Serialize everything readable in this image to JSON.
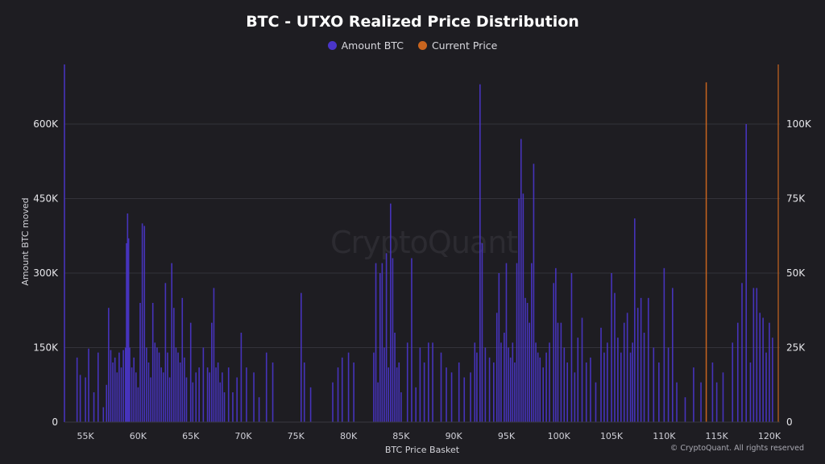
{
  "chart_data": {
    "type": "bar",
    "title": "BTC - UTXO Realized Price Distribution",
    "xlabel": "BTC Price Basket",
    "ylabel": "Amount BTC moved",
    "y2label": "",
    "xlim": [
      53000,
      121000
    ],
    "ylim": [
      0,
      720000
    ],
    "y2lim": [
      0,
      120000
    ],
    "x_ticks": [
      55000,
      60000,
      65000,
      70000,
      75000,
      80000,
      85000,
      90000,
      95000,
      100000,
      105000,
      110000,
      115000,
      120000
    ],
    "x_tick_labels": [
      "55K",
      "60K",
      "65K",
      "70K",
      "75K",
      "80K",
      "85K",
      "90K",
      "95K",
      "100K",
      "105K",
      "110K",
      "115K",
      "120K"
    ],
    "y_ticks": [
      0,
      150000,
      300000,
      450000,
      600000
    ],
    "y_tick_labels": [
      "0",
      "150K",
      "300K",
      "450K",
      "600K"
    ],
    "y2_ticks": [
      0,
      25000,
      50000,
      75000,
      100000
    ],
    "y2_tick_labels": [
      "0",
      "25K",
      "50K",
      "75K",
      "100K"
    ],
    "grid": true,
    "legend_position": "top-center",
    "colors": {
      "amount": "#4a35c9",
      "current_price": "#c8641e",
      "background": "#1e1d22",
      "grid": "#33323a"
    },
    "series": [
      {
        "name": "Amount BTC",
        "axis": "left",
        "points": [
          [
            53000,
            720000
          ],
          [
            54200,
            130000
          ],
          [
            54500,
            95000
          ],
          [
            55000,
            90000
          ],
          [
            55300,
            148000
          ],
          [
            55800,
            60000
          ],
          [
            56200,
            140000
          ],
          [
            56700,
            30000
          ],
          [
            57000,
            75000
          ],
          [
            57200,
            230000
          ],
          [
            57400,
            145000
          ],
          [
            57600,
            120000
          ],
          [
            57800,
            130000
          ],
          [
            58000,
            100000
          ],
          [
            58200,
            140000
          ],
          [
            58400,
            110000
          ],
          [
            58600,
            145000
          ],
          [
            58800,
            150000
          ],
          [
            58900,
            360000
          ],
          [
            59000,
            420000
          ],
          [
            59100,
            370000
          ],
          [
            59200,
            150000
          ],
          [
            59400,
            110000
          ],
          [
            59600,
            130000
          ],
          [
            59800,
            100000
          ],
          [
            60000,
            70000
          ],
          [
            60200,
            240000
          ],
          [
            60400,
            400000
          ],
          [
            60600,
            395000
          ],
          [
            60800,
            150000
          ],
          [
            61000,
            120000
          ],
          [
            61200,
            90000
          ],
          [
            61400,
            240000
          ],
          [
            61600,
            160000
          ],
          [
            61800,
            150000
          ],
          [
            62000,
            140000
          ],
          [
            62200,
            110000
          ],
          [
            62400,
            100000
          ],
          [
            62600,
            280000
          ],
          [
            62800,
            140000
          ],
          [
            63000,
            90000
          ],
          [
            63200,
            320000
          ],
          [
            63400,
            230000
          ],
          [
            63600,
            150000
          ],
          [
            63800,
            140000
          ],
          [
            64000,
            120000
          ],
          [
            64200,
            250000
          ],
          [
            64400,
            130000
          ],
          [
            64600,
            90000
          ],
          [
            65000,
            200000
          ],
          [
            65200,
            80000
          ],
          [
            65500,
            100000
          ],
          [
            65800,
            110000
          ],
          [
            66200,
            150000
          ],
          [
            66600,
            110000
          ],
          [
            66800,
            100000
          ],
          [
            67000,
            200000
          ],
          [
            67200,
            270000
          ],
          [
            67400,
            110000
          ],
          [
            67600,
            120000
          ],
          [
            67800,
            80000
          ],
          [
            68000,
            100000
          ],
          [
            68200,
            60000
          ],
          [
            68600,
            110000
          ],
          [
            69000,
            60000
          ],
          [
            69400,
            90000
          ],
          [
            69800,
            180000
          ],
          [
            70300,
            110000
          ],
          [
            71000,
            100000
          ],
          [
            71500,
            50000
          ],
          [
            72200,
            140000
          ],
          [
            72800,
            120000
          ],
          [
            75500,
            260000
          ],
          [
            75800,
            120000
          ],
          [
            76400,
            70000
          ],
          [
            78500,
            80000
          ],
          [
            79000,
            110000
          ],
          [
            79400,
            130000
          ],
          [
            80000,
            140000
          ],
          [
            80500,
            120000
          ],
          [
            82400,
            140000
          ],
          [
            82600,
            320000
          ],
          [
            82800,
            80000
          ],
          [
            83000,
            300000
          ],
          [
            83200,
            320000
          ],
          [
            83400,
            150000
          ],
          [
            83600,
            340000
          ],
          [
            83800,
            110000
          ],
          [
            84000,
            440000
          ],
          [
            84200,
            330000
          ],
          [
            84400,
            180000
          ],
          [
            84600,
            110000
          ],
          [
            84800,
            120000
          ],
          [
            85000,
            60000
          ],
          [
            85600,
            160000
          ],
          [
            86000,
            330000
          ],
          [
            86400,
            70000
          ],
          [
            86800,
            150000
          ],
          [
            87200,
            120000
          ],
          [
            87600,
            160000
          ],
          [
            88000,
            160000
          ],
          [
            88800,
            140000
          ],
          [
            89300,
            110000
          ],
          [
            89800,
            100000
          ],
          [
            90500,
            120000
          ],
          [
            91000,
            90000
          ],
          [
            91600,
            100000
          ],
          [
            92000,
            160000
          ],
          [
            92200,
            140000
          ],
          [
            92500,
            680000
          ],
          [
            92700,
            360000
          ],
          [
            93000,
            150000
          ],
          [
            93400,
            130000
          ],
          [
            93800,
            120000
          ],
          [
            94100,
            220000
          ],
          [
            94300,
            300000
          ],
          [
            94500,
            160000
          ],
          [
            94800,
            180000
          ],
          [
            95000,
            320000
          ],
          [
            95200,
            150000
          ],
          [
            95400,
            130000
          ],
          [
            95600,
            160000
          ],
          [
            95800,
            120000
          ],
          [
            96000,
            320000
          ],
          [
            96200,
            450000
          ],
          [
            96400,
            570000
          ],
          [
            96600,
            460000
          ],
          [
            96800,
            250000
          ],
          [
            97000,
            240000
          ],
          [
            97200,
            200000
          ],
          [
            97400,
            320000
          ],
          [
            97600,
            520000
          ],
          [
            97800,
            160000
          ],
          [
            98000,
            140000
          ],
          [
            98200,
            130000
          ],
          [
            98500,
            110000
          ],
          [
            98800,
            140000
          ],
          [
            99100,
            160000
          ],
          [
            99500,
            280000
          ],
          [
            99700,
            310000
          ],
          [
            99900,
            200000
          ],
          [
            100200,
            200000
          ],
          [
            100500,
            150000
          ],
          [
            100800,
            120000
          ],
          [
            101200,
            300000
          ],
          [
            101500,
            100000
          ],
          [
            101800,
            170000
          ],
          [
            102200,
            210000
          ],
          [
            102600,
            120000
          ],
          [
            103000,
            130000
          ],
          [
            103500,
            80000
          ],
          [
            104000,
            190000
          ],
          [
            104300,
            140000
          ],
          [
            104600,
            160000
          ],
          [
            105000,
            300000
          ],
          [
            105300,
            260000
          ],
          [
            105600,
            170000
          ],
          [
            105900,
            140000
          ],
          [
            106200,
            200000
          ],
          [
            106500,
            220000
          ],
          [
            106800,
            140000
          ],
          [
            107000,
            160000
          ],
          [
            107200,
            410000
          ],
          [
            107500,
            230000
          ],
          [
            107800,
            250000
          ],
          [
            108100,
            180000
          ],
          [
            108500,
            250000
          ],
          [
            109000,
            150000
          ],
          [
            109500,
            120000
          ],
          [
            110000,
            310000
          ],
          [
            110400,
            150000
          ],
          [
            110800,
            270000
          ],
          [
            111200,
            80000
          ],
          [
            112000,
            50000
          ],
          [
            112800,
            110000
          ],
          [
            113500,
            80000
          ],
          [
            114600,
            120000
          ],
          [
            115000,
            80000
          ],
          [
            115600,
            100000
          ],
          [
            116500,
            160000
          ],
          [
            117000,
            200000
          ],
          [
            117400,
            280000
          ],
          [
            117800,
            600000
          ],
          [
            118200,
            120000
          ],
          [
            118500,
            270000
          ],
          [
            118800,
            270000
          ],
          [
            119100,
            220000
          ],
          [
            119400,
            210000
          ],
          [
            119700,
            140000
          ],
          [
            120000,
            200000
          ],
          [
            120300,
            170000
          ]
        ]
      },
      {
        "name": "Current Price",
        "axis": "right",
        "type": "vline",
        "x": 114000,
        "y": 114000
      }
    ]
  },
  "watermark": "CryptoQuant",
  "credit": "© CryptoQuant. All rights reserved"
}
